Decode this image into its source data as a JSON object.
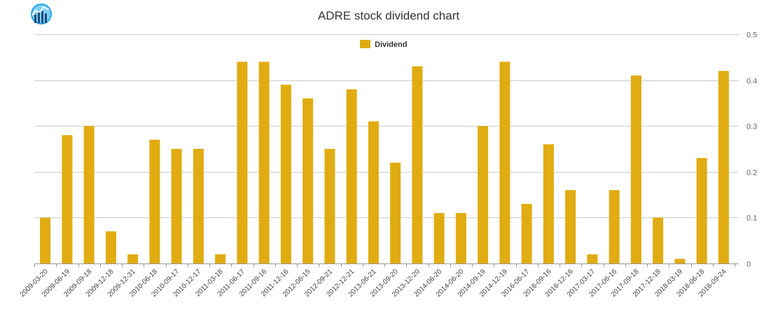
{
  "chart_data": {
    "type": "bar",
    "title": "ADRE stock dividend chart",
    "xlabel": "",
    "ylabel": "",
    "ylim": [
      0,
      0.5
    ],
    "yticks": [
      0,
      0.1,
      0.2,
      0.3,
      0.4,
      0.5
    ],
    "ytick_labels": [
      "0",
      "0.1",
      "0.2",
      "0.3",
      "0.4",
      "0.5"
    ],
    "grid": true,
    "legend_position": "top-center",
    "bar_color": "#E0AC12",
    "categories": [
      "2009-03-20",
      "2009-06-19",
      "2009-09-18",
      "2009-12-18",
      "2009-12-31",
      "2010-06-18",
      "2010-09-17",
      "2010-12-17",
      "2011-03-18",
      "2011-06-17",
      "2011-09-16",
      "2011-12-16",
      "2012-06-15",
      "2012-09-21",
      "2012-12-21",
      "2013-06-21",
      "2013-09-20",
      "2013-12-20",
      "2014-06-20",
      "2014-06-20",
      "2014-09-19",
      "2014-12-19",
      "2016-06-17",
      "2016-09-16",
      "2016-12-16",
      "2017-03-17",
      "2017-06-16",
      "2017-09-18",
      "2017-12-18",
      "2018-03-19",
      "2018-06-18",
      "2018-09-24"
    ],
    "series": [
      {
        "name": "Dividend",
        "values": [
          0.1,
          0.28,
          0.3,
          0.07,
          0.02,
          0.27,
          0.25,
          0.25,
          0.02,
          0.44,
          0.44,
          0.39,
          0.36,
          0.25,
          0.38,
          0.31,
          0.22,
          0.43,
          0.11,
          0.11,
          0.3,
          0.44,
          0.13,
          0.26,
          0.16,
          0.02,
          0.16,
          0.41,
          0.1,
          0.01,
          0.23,
          0.42
        ]
      }
    ]
  },
  "logo": {
    "icon": "stock-chart-logo-icon",
    "color": "#29A3E8"
  }
}
